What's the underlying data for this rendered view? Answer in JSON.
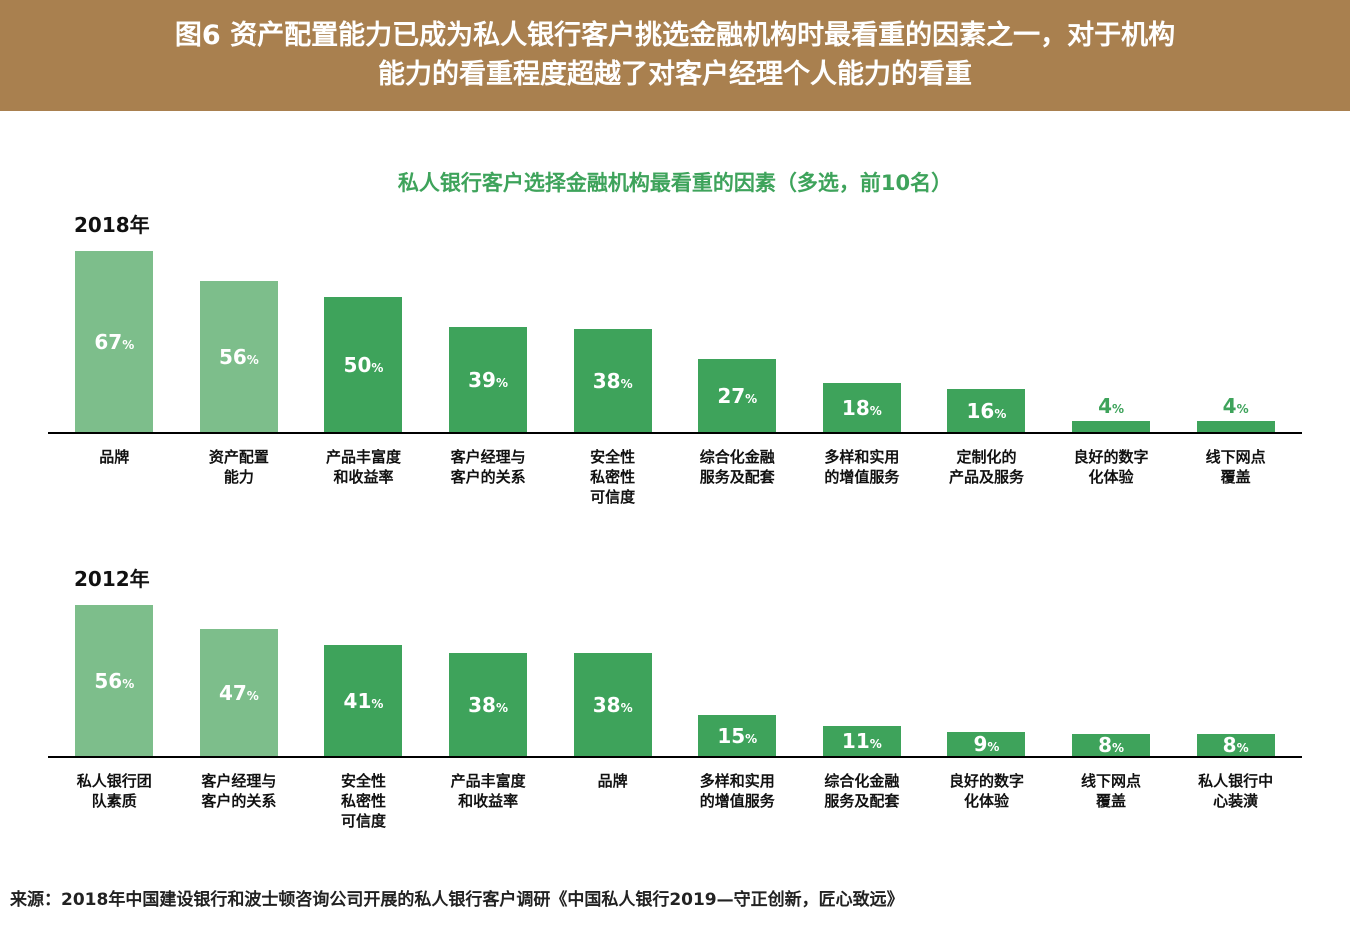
{
  "colors": {
    "header_bg": "#A9804F",
    "header_text": "#FFFFFF",
    "title_green": "#3EA35B",
    "bar_light": "#7DBE8B",
    "bar_dark": "#3EA35B",
    "axis": "#000000",
    "category_text": "#111111",
    "source_text": "#222222"
  },
  "header": {
    "line1": "图6 资产配置能力已成为私人银行客户挑选金融机构时最看重的因素之一，对于机构",
    "line2": "能力的看重程度超越了对客户经理个人能力的看重"
  },
  "chart_title": "私人银行客户选择金融机构最看重的因素（多选，前10名）",
  "chart_data": [
    {
      "type": "bar",
      "year_label": "2018年",
      "title": "私人银行客户选择金融机构最看重的因素（多选，前10名）",
      "unit": "%",
      "ylim": [
        0,
        67
      ],
      "grid": false,
      "legend": "none",
      "categories": [
        "品牌",
        "资产配置\n能力",
        "产品丰富度\n和收益率",
        "客户经理与\n客户的关系",
        "安全性\n私密性\n可信度",
        "综合化金融\n服务及配套",
        "多样和实用\n的增值服务",
        "定制化的\n产品及服务",
        "良好的数字\n化体验",
        "线下网点\n覆盖"
      ],
      "values": [
        67,
        56,
        50,
        39,
        38,
        27,
        18,
        16,
        4,
        4
      ],
      "bar_shades": [
        "light",
        "light",
        "dark",
        "dark",
        "dark",
        "dark",
        "dark",
        "dark",
        "dark",
        "dark"
      ]
    },
    {
      "type": "bar",
      "year_label": "2012年",
      "title": "私人银行客户选择金融机构最看重的因素（多选，前10名）",
      "unit": "%",
      "ylim": [
        0,
        56
      ],
      "grid": false,
      "legend": "none",
      "categories": [
        "私人银行团\n队素质",
        "客户经理与\n客户的关系",
        "安全性\n私密性\n可信度",
        "产品丰富度\n和收益率",
        "品牌",
        "多样和实用\n的增值服务",
        "综合化金融\n服务及配套",
        "良好的数字\n化体验",
        "线下网点\n覆盖",
        "私人银行中\n心装潢"
      ],
      "values": [
        56,
        47,
        41,
        38,
        38,
        15,
        11,
        9,
        8,
        8
      ],
      "bar_shades": [
        "light",
        "light",
        "dark",
        "dark",
        "dark",
        "dark",
        "dark",
        "dark",
        "dark",
        "dark"
      ]
    }
  ],
  "source": "来源：2018年中国建设银行和波士顿咨询公司开展的私人银行客户调研《中国私人银行2019—守正创新，匠心致远》"
}
